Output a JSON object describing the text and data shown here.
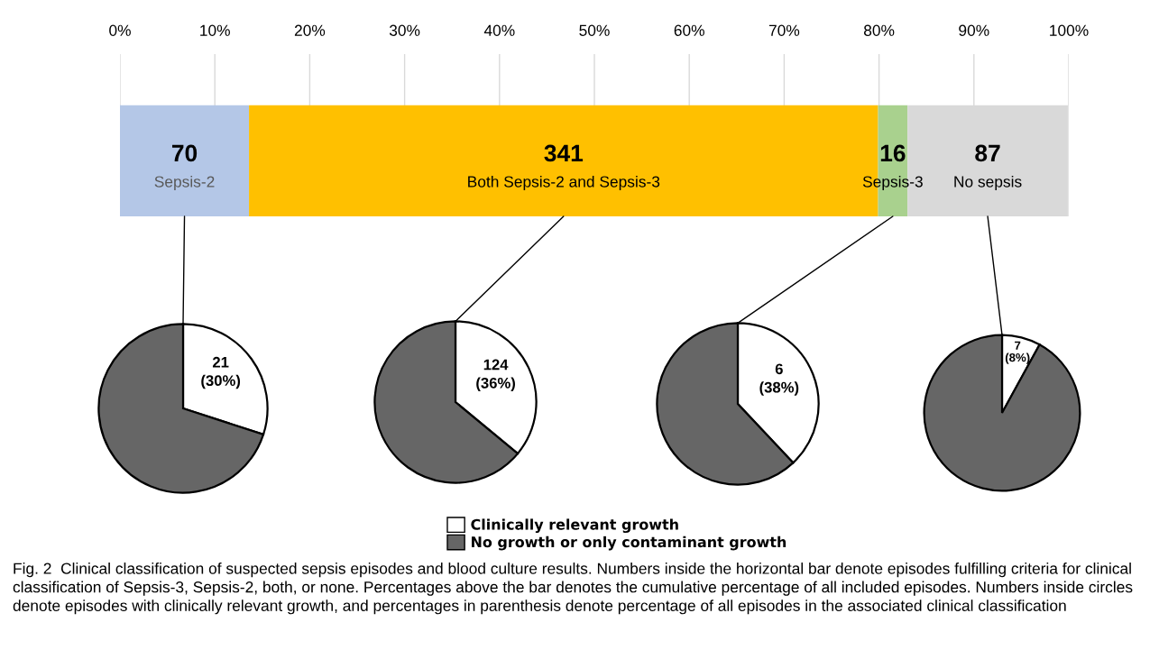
{
  "chart_data": [
    {
      "type": "bar",
      "orientation": "horizontal",
      "stacked": true,
      "categories": [
        null
      ],
      "xlim": [
        0,
        100
      ],
      "xticks": [
        {
          "value": 0,
          "label": "0%"
        },
        {
          "value": 10,
          "label": "10%"
        },
        {
          "value": 20,
          "label": "20%"
        },
        {
          "value": 30,
          "label": "30%"
        },
        {
          "value": 40,
          "label": "40%"
        },
        {
          "value": 50,
          "label": "50%"
        },
        {
          "value": 60,
          "label": "60%"
        },
        {
          "value": 70,
          "label": "70%"
        },
        {
          "value": 80,
          "label": "80%"
        },
        {
          "value": 90,
          "label": "90%"
        },
        {
          "value": 100,
          "label": "100%"
        }
      ],
      "grid": "x",
      "legend": false,
      "tick_labels": "x",
      "series": [
        {
          "name": "Sepsis-2",
          "color": "#b4c7e7",
          "values": [
            13.6
          ]
        },
        {
          "name": "Both Sepsis-2 and Sepsis-3",
          "color": "#ffc000",
          "values": [
            66.3
          ]
        },
        {
          "name": "Sepsis-3",
          "color": "#a9d18e",
          "values": [
            3.1
          ]
        },
        {
          "name": "No sepsis",
          "color": "#d9d9d9",
          "values": [
            16.9
          ]
        }
      ],
      "annotations": [
        "70",
        "341",
        "16",
        "87",
        "Fig. 2  Clinical classification of suspected sepsis episodes and blood culture results. Numbers inside the horizontal bar denote episodes fulfilling criteria for clinical classification of Sepsis-3, Sepsis-2, both, or none. Percentages above the bar denotes the cumulative percentage of all included episodes. Numbers inside circles denote episodes with clinically relevant growth, and percentages in parenthesis denote percentage of all episodes in the associated clinical classification"
      ]
    },
    {
      "type": "pie",
      "categories": [
        "Clinically relevant growth",
        "No growth or only contaminant growth"
      ],
      "values": [
        30,
        70
      ],
      "colors": [
        "#ffffff",
        "#666666"
      ],
      "value_labels": [
        "21\n(30%)",
        null
      ],
      "legend": "bottom"
    },
    {
      "type": "pie",
      "categories": [
        null,
        null
      ],
      "values": [
        36,
        64
      ],
      "colors": [
        "#ffffff",
        "#666666"
      ],
      "value_labels": [
        "124\n(36%)",
        null
      ]
    },
    {
      "type": "pie",
      "categories": [
        null,
        null
      ],
      "values": [
        38,
        62
      ],
      "colors": [
        "#ffffff",
        "#666666"
      ],
      "value_labels": [
        "6\n(38%)",
        null
      ]
    },
    {
      "type": "pie",
      "categories": [
        null,
        null
      ],
      "values": [
        8,
        92
      ],
      "colors": [
        "#ffffff",
        "#666666"
      ],
      "value_labels": [
        "7\n(8%)",
        null
      ]
    }
  ]
}
